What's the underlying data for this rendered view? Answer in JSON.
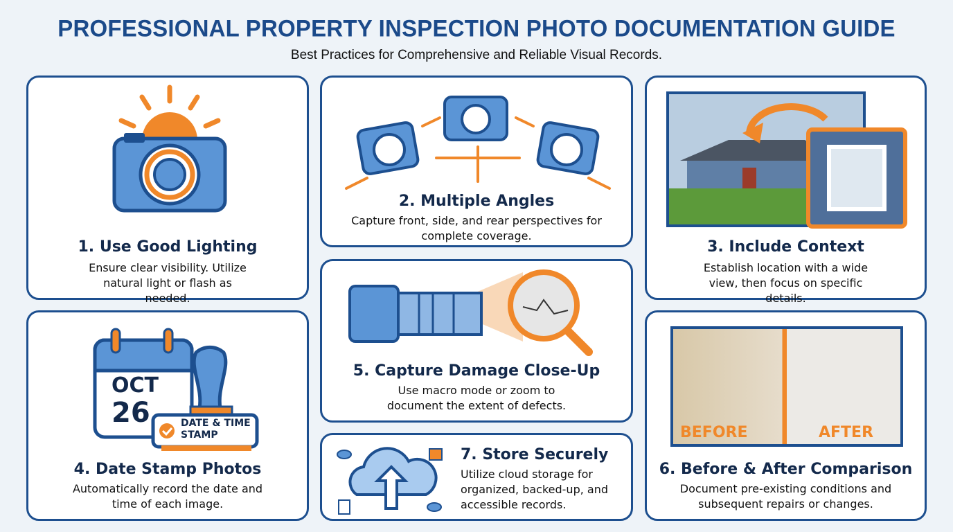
{
  "header": {
    "title": "PROFESSIONAL PROPERTY INSPECTION PHOTO DOCUMENTATION GUIDE",
    "subtitle": "Best Practices for Comprehensive and Reliable Visual Records."
  },
  "colors": {
    "primary": "#1d4f8f",
    "accent": "#f0882a",
    "light_blue": "#5b95d6",
    "background": "#eef3f8"
  },
  "cards": [
    {
      "heading": "1. Use Good Lighting",
      "desc": "Ensure clear visibility. Utilize natural light or flash as needed.",
      "icon": "camera-sun-icon"
    },
    {
      "heading": "2. Multiple Angles",
      "desc": "Capture front, side, and rear perspectives for complete coverage.",
      "icon": "multiple-cameras-icon"
    },
    {
      "heading": "3. Include Context",
      "desc": "Establish location with a wide view, then focus on specific details.",
      "icon": "house-context-photo"
    },
    {
      "heading": "4. Date Stamp Photos",
      "desc": "Automatically record the date and time of each image.",
      "icon": "calendar-stamp-icon",
      "calendar_month": "OCT",
      "calendar_day": "26",
      "stamp_label": "DATE & TIME STAMP"
    },
    {
      "heading": "5. Capture Damage Close-Up",
      "desc": "Use macro mode or zoom to document the extent of defects.",
      "icon": "zoom-lens-crack-icon"
    },
    {
      "heading": "6. Before & After Comparison",
      "desc": "Document pre-existing conditions and subsequent repairs or changes.",
      "icon": "before-after-photo",
      "before_label": "BEFORE",
      "after_label": "AFTER"
    },
    {
      "heading": "7. Store Securely",
      "desc": "Utilize cloud storage for organized, backed-up, and accessible records.",
      "icon": "cloud-upload-icon"
    }
  ]
}
